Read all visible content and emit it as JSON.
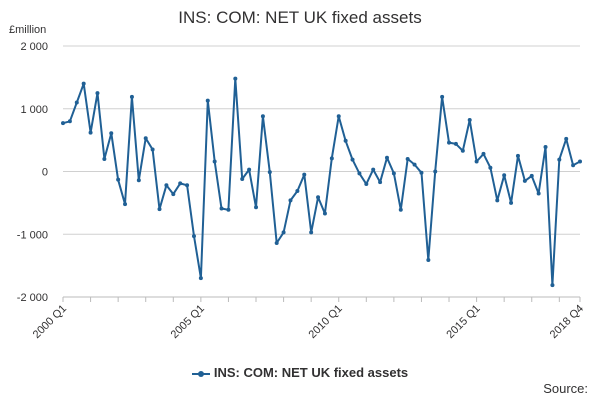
{
  "chart_data": {
    "type": "line",
    "title": "INS: COM: NET UK fixed assets",
    "ylabel": "£million",
    "xlabel": "",
    "ylim": [
      -2000,
      2000
    ],
    "y_ticks": [
      {
        "value": 2000,
        "label": "2 000"
      },
      {
        "value": 1000,
        "label": "1 000"
      },
      {
        "value": 0,
        "label": "0"
      },
      {
        "value": -1000,
        "label": "-1 000"
      },
      {
        "value": -2000,
        "label": "-2 000"
      }
    ],
    "x_ticks": [
      {
        "index": 0,
        "label": "2000 Q1"
      },
      {
        "index": 20,
        "label": "2005 Q1"
      },
      {
        "index": 40,
        "label": "2010 Q1"
      },
      {
        "index": 60,
        "label": "2015 Q1"
      },
      {
        "index": 75,
        "label": "2018 Q4"
      }
    ],
    "grid": true,
    "legend_position": "bottom",
    "series": [
      {
        "name": "INS: COM: NET UK fixed assets",
        "color": "#206095",
        "values": [
          770,
          800,
          1100,
          1400,
          620,
          1250,
          200,
          610,
          -130,
          -520,
          1190,
          -140,
          530,
          350,
          -600,
          -220,
          -360,
          -190,
          -220,
          -1030,
          -1700,
          1130,
          160,
          -590,
          -610,
          1480,
          -120,
          30,
          -570,
          880,
          -10,
          -1140,
          -970,
          -460,
          -310,
          -50,
          -970,
          -410,
          -670,
          210,
          880,
          490,
          190,
          -30,
          -200,
          30,
          -170,
          220,
          -30,
          -610,
          200,
          110,
          -20,
          -1410,
          0,
          1190,
          460,
          440,
          330,
          820,
          160,
          280,
          60,
          -460,
          -60,
          -500,
          250,
          -150,
          -70,
          -350,
          390,
          -1810,
          190,
          520,
          100,
          160
        ]
      }
    ]
  },
  "legend": {
    "label": "INS: COM: NET UK fixed assets"
  },
  "footer": {
    "source": "Source:"
  }
}
